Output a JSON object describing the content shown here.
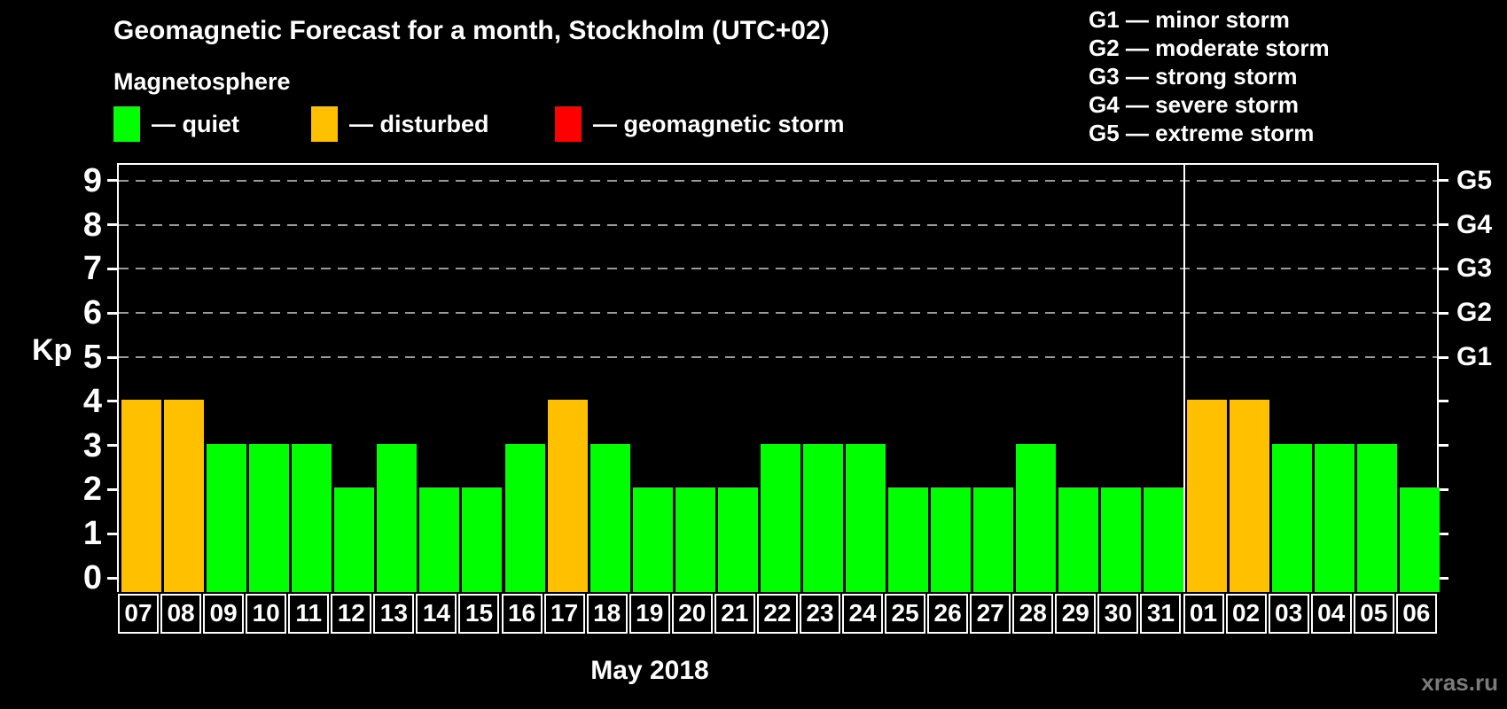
{
  "title": "Geomagnetic Forecast for a month, Stockholm (UTC+02)",
  "legend": {
    "heading": "Magnetosphere",
    "items": [
      {
        "key": "quiet",
        "label": "— quiet",
        "color": "#00ff00"
      },
      {
        "key": "disturbed",
        "label": "— disturbed",
        "color": "#ffc000"
      },
      {
        "key": "storm",
        "label": "— geomagnetic storm",
        "color": "#ff0000"
      }
    ]
  },
  "storm_scale": [
    "G1 — minor storm",
    "G2 — moderate storm",
    "G3 — strong storm",
    "G4 — severe storm",
    "G5 — extreme storm"
  ],
  "chart_data": {
    "type": "bar",
    "title": "Geomagnetic Forecast for a month, Stockholm (UTC+02)",
    "xlabel": "May 2018",
    "ylabel": "Kp",
    "ylim": [
      0,
      9
    ],
    "grid": "dashed horizontal at G-storm levels",
    "gridlines_at": [
      5,
      6,
      7,
      8,
      9
    ],
    "right_axis_labels": [
      {
        "kp": 5,
        "label": "G1"
      },
      {
        "kp": 6,
        "label": "G2"
      },
      {
        "kp": 7,
        "label": "G3"
      },
      {
        "kp": 8,
        "label": "G4"
      },
      {
        "kp": 9,
        "label": "G5"
      }
    ],
    "categories": [
      "07",
      "08",
      "09",
      "10",
      "11",
      "12",
      "13",
      "14",
      "15",
      "16",
      "17",
      "18",
      "19",
      "20",
      "21",
      "22",
      "23",
      "24",
      "25",
      "26",
      "27",
      "28",
      "29",
      "30",
      "31",
      "01",
      "02",
      "03",
      "04",
      "05",
      "06"
    ],
    "values": [
      4,
      4,
      3,
      3,
      3,
      2,
      3,
      2,
      2,
      3,
      4,
      3,
      2,
      2,
      2,
      3,
      3,
      3,
      2,
      2,
      2,
      3,
      2,
      2,
      2,
      4,
      4,
      3,
      3,
      3,
      2
    ],
    "statuses": [
      "disturbed",
      "disturbed",
      "quiet",
      "quiet",
      "quiet",
      "quiet",
      "quiet",
      "quiet",
      "quiet",
      "quiet",
      "disturbed",
      "quiet",
      "quiet",
      "quiet",
      "quiet",
      "quiet",
      "quiet",
      "quiet",
      "quiet",
      "quiet",
      "quiet",
      "quiet",
      "quiet",
      "quiet",
      "quiet",
      "disturbed",
      "disturbed",
      "quiet",
      "quiet",
      "quiet",
      "quiet"
    ],
    "month_divider_after_index": 24
  },
  "watermark": "xras.ru"
}
